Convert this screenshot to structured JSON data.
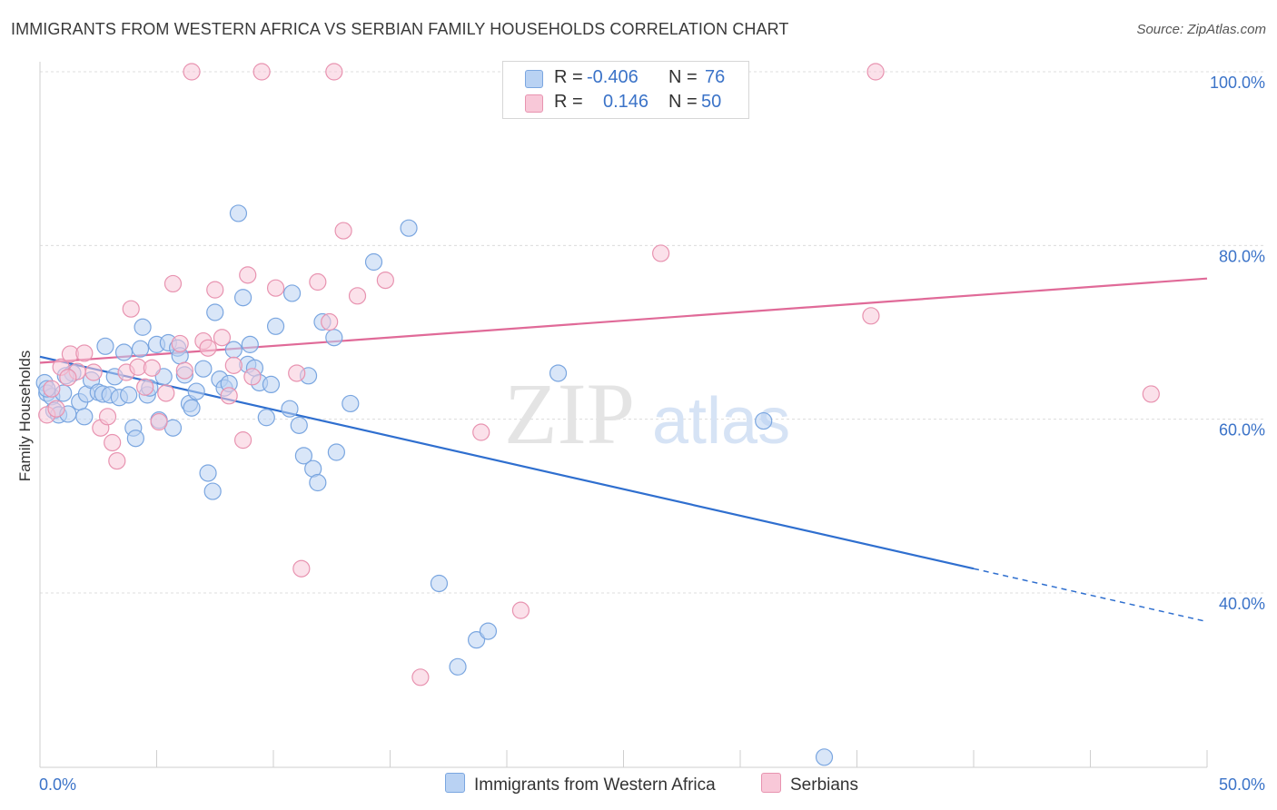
{
  "title": "IMMIGRANTS FROM WESTERN AFRICA VS SERBIAN FAMILY HOUSEHOLDS CORRELATION CHART",
  "source": "Source: ZipAtlas.com",
  "watermark": {
    "zip": "ZIP",
    "atlas": "atlas"
  },
  "legend": {
    "r_label": "R =",
    "n_label": "N =",
    "rows": [
      {
        "r": "-0.406",
        "n": "76",
        "color": "#7aa6e0"
      },
      {
        "r": "0.146",
        "n": "50",
        "color": "#e893b0"
      }
    ]
  },
  "chart_data": {
    "type": "scatter",
    "ylabel": "Family Households",
    "xlim": [
      0,
      50
    ],
    "ylim": [
      20,
      102
    ],
    "x_tick_labels": [
      "0.0%",
      "50.0%"
    ],
    "y_ticks": [
      {
        "value": 100,
        "label": "100.0%"
      },
      {
        "value": 80,
        "label": "80.0%"
      },
      {
        "value": 60,
        "label": "60.0%"
      },
      {
        "value": 40,
        "label": "40.0%"
      }
    ],
    "grid": true,
    "series": [
      {
        "name": "Immigrants from Western Africa",
        "color": "#7aa6e0",
        "fill": "#b9d2f3",
        "trend": {
          "x0": 0,
          "y0": 67.2,
          "x1": 40,
          "y1": 42.8,
          "x_dash_end": 50,
          "y_dash_end": 36.7
        },
        "points": [
          [
            0.2,
            64.2
          ],
          [
            0.3,
            63.0
          ],
          [
            0.5,
            62.6
          ],
          [
            0.6,
            61.0
          ],
          [
            0.8,
            60.5
          ],
          [
            1.0,
            63.0
          ],
          [
            1.2,
            60.6
          ],
          [
            1.4,
            65.3
          ],
          [
            1.7,
            62.0
          ],
          [
            1.9,
            60.3
          ],
          [
            2.0,
            62.9
          ],
          [
            2.2,
            64.5
          ],
          [
            2.5,
            63.1
          ],
          [
            2.7,
            62.9
          ],
          [
            2.8,
            68.4
          ],
          [
            3.0,
            62.8
          ],
          [
            3.2,
            64.9
          ],
          [
            3.4,
            62.5
          ],
          [
            3.6,
            67.7
          ],
          [
            3.8,
            62.8
          ],
          [
            4.0,
            59.0
          ],
          [
            4.1,
            57.8
          ],
          [
            4.3,
            68.1
          ],
          [
            4.4,
            70.6
          ],
          [
            4.6,
            62.8
          ],
          [
            4.7,
            63.6
          ],
          [
            5.0,
            68.6
          ],
          [
            5.1,
            59.9
          ],
          [
            5.3,
            64.9
          ],
          [
            5.5,
            68.8
          ],
          [
            5.7,
            59.0
          ],
          [
            5.9,
            68.2
          ],
          [
            6.0,
            67.3
          ],
          [
            6.2,
            65.1
          ],
          [
            6.4,
            61.8
          ],
          [
            6.5,
            61.3
          ],
          [
            6.7,
            63.2
          ],
          [
            7.0,
            65.8
          ],
          [
            7.2,
            53.8
          ],
          [
            7.4,
            51.7
          ],
          [
            7.5,
            72.3
          ],
          [
            7.7,
            64.6
          ],
          [
            7.9,
            63.6
          ],
          [
            8.1,
            64.1
          ],
          [
            8.3,
            68.0
          ],
          [
            8.5,
            83.7
          ],
          [
            8.7,
            74.0
          ],
          [
            8.9,
            66.3
          ],
          [
            9.0,
            68.6
          ],
          [
            9.2,
            65.9
          ],
          [
            9.4,
            64.2
          ],
          [
            9.7,
            60.2
          ],
          [
            9.9,
            64.0
          ],
          [
            10.1,
            70.7
          ],
          [
            10.8,
            74.5
          ],
          [
            10.7,
            61.2
          ],
          [
            11.1,
            59.3
          ],
          [
            11.3,
            55.8
          ],
          [
            11.5,
            65.0
          ],
          [
            11.7,
            54.3
          ],
          [
            11.9,
            52.7
          ],
          [
            12.1,
            71.2
          ],
          [
            12.6,
            69.4
          ],
          [
            12.7,
            56.2
          ],
          [
            13.3,
            61.8
          ],
          [
            14.3,
            78.1
          ],
          [
            15.8,
            82.0
          ],
          [
            17.1,
            41.1
          ],
          [
            17.9,
            31.5
          ],
          [
            18.7,
            34.6
          ],
          [
            19.2,
            35.6
          ],
          [
            22.2,
            65.3
          ],
          [
            31.0,
            59.8
          ],
          [
            33.6,
            21.1
          ],
          [
            0.3,
            63.5
          ],
          [
            1.1,
            65.0
          ]
        ]
      },
      {
        "name": "Serbians",
        "color": "#e893b0",
        "fill": "#f8c8d8",
        "trend": {
          "x0": 0,
          "y0": 66.5,
          "x1": 50,
          "y1": 76.2
        },
        "points": [
          [
            0.3,
            60.5
          ],
          [
            0.5,
            63.5
          ],
          [
            0.7,
            61.2
          ],
          [
            0.9,
            66.0
          ],
          [
            1.3,
            67.5
          ],
          [
            1.6,
            65.5
          ],
          [
            1.9,
            67.6
          ],
          [
            2.3,
            65.4
          ],
          [
            2.6,
            59.0
          ],
          [
            2.9,
            60.3
          ],
          [
            3.1,
            57.3
          ],
          [
            3.3,
            55.2
          ],
          [
            3.7,
            65.4
          ],
          [
            3.9,
            72.7
          ],
          [
            4.2,
            66.0
          ],
          [
            4.5,
            63.7
          ],
          [
            4.8,
            65.9
          ],
          [
            5.1,
            59.7
          ],
          [
            5.4,
            63.0
          ],
          [
            5.7,
            75.6
          ],
          [
            6.0,
            68.7
          ],
          [
            6.2,
            65.6
          ],
          [
            6.5,
            100.0
          ],
          [
            7.0,
            69.0
          ],
          [
            7.2,
            68.2
          ],
          [
            7.5,
            74.9
          ],
          [
            7.8,
            69.4
          ],
          [
            8.3,
            66.2
          ],
          [
            8.7,
            57.6
          ],
          [
            8.9,
            76.6
          ],
          [
            9.1,
            64.9
          ],
          [
            9.5,
            100.0
          ],
          [
            10.1,
            75.1
          ],
          [
            11.0,
            65.3
          ],
          [
            11.2,
            42.8
          ],
          [
            11.9,
            75.8
          ],
          [
            12.4,
            71.2
          ],
          [
            12.6,
            100.0
          ],
          [
            13.0,
            81.7
          ],
          [
            13.6,
            74.2
          ],
          [
            14.8,
            76.0
          ],
          [
            16.3,
            30.3
          ],
          [
            18.9,
            58.5
          ],
          [
            20.6,
            38.0
          ],
          [
            26.6,
            79.1
          ],
          [
            35.8,
            100.0
          ],
          [
            35.6,
            71.9
          ],
          [
            47.6,
            62.9
          ],
          [
            1.2,
            64.8
          ],
          [
            8.1,
            62.7
          ]
        ]
      }
    ]
  }
}
